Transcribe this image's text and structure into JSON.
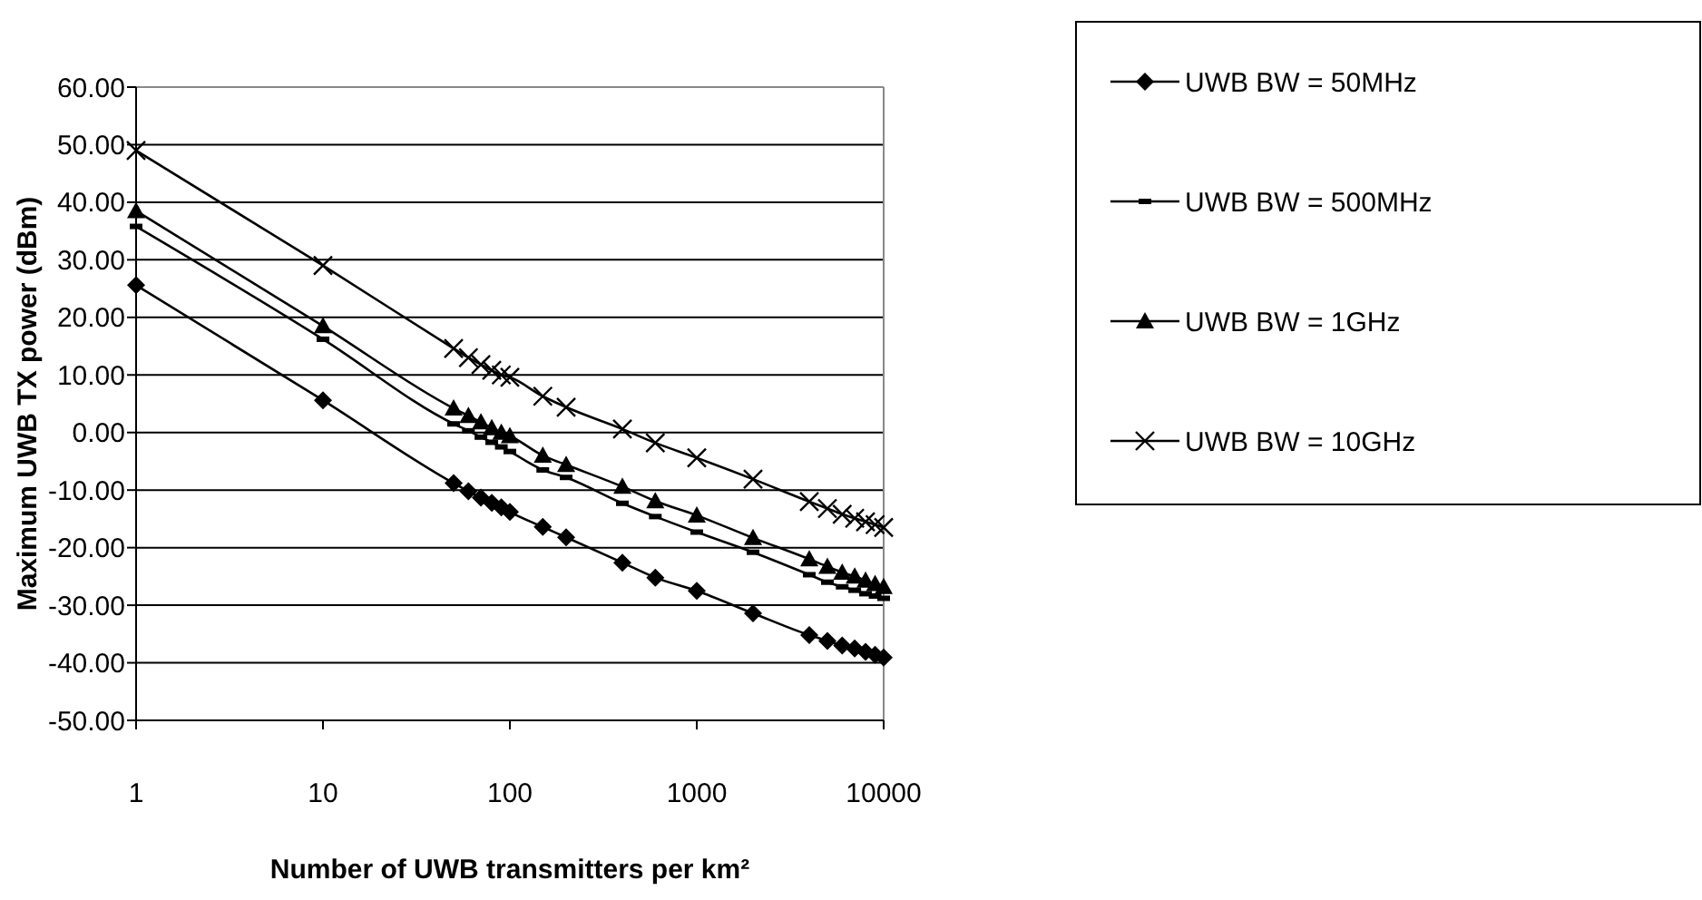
{
  "chart_data": {
    "type": "line",
    "xlabel": "Number of UWB transmitters per km²",
    "ylabel": "Maximum UWB TX power (dBm)",
    "x": [
      1,
      10,
      50,
      60,
      70,
      80,
      90,
      100,
      150,
      200,
      400,
      600,
      1000,
      2000,
      4000,
      5000,
      6000,
      7000,
      8000,
      9000,
      10000
    ],
    "series": [
      {
        "name": "UWB BW = 50MHz",
        "color": "#000000",
        "marker": "diamond",
        "values": [
          25.6,
          5.6,
          -8.8,
          -10.2,
          -11.3,
          -12.2,
          -13.0,
          -13.8,
          -16.4,
          -18.2,
          -22.6,
          -25.2,
          -27.5,
          -31.4,
          -35.2,
          -36.2,
          -37.0,
          -37.5,
          -38.1,
          -38.6,
          -39.1
        ]
      },
      {
        "name": "UWB BW = 500MHz",
        "color": "#000000",
        "marker": "square",
        "values": [
          35.8,
          16.2,
          1.5,
          0.3,
          -0.8,
          -1.7,
          -2.5,
          -3.3,
          -6.5,
          -7.8,
          -12.3,
          -14.6,
          -17.3,
          -20.8,
          -24.7,
          -26.0,
          -26.8,
          -27.4,
          -28.0,
          -28.4,
          -28.8
        ]
      },
      {
        "name": "UWB BW = 1GHz",
        "color": "#000000",
        "marker": "triangle",
        "values": [
          38.5,
          18.5,
          4.2,
          2.9,
          1.8,
          0.8,
          0.0,
          -0.6,
          -4.0,
          -5.6,
          -9.4,
          -11.9,
          -14.4,
          -18.3,
          -22.0,
          -23.3,
          -24.3,
          -25.0,
          -25.7,
          -26.3,
          -26.8
        ]
      },
      {
        "name": "UWB BW = 10GHz",
        "color": "#000000",
        "marker": "cross",
        "values": [
          49.0,
          29.0,
          14.6,
          13.0,
          11.8,
          10.8,
          10.0,
          9.6,
          6.3,
          4.4,
          0.6,
          -1.8,
          -4.4,
          -8.1,
          -12.0,
          -13.2,
          -14.2,
          -14.9,
          -15.5,
          -16.0,
          -16.5
        ]
      }
    ],
    "log": "x",
    "xlim": [
      1,
      10000
    ],
    "xticks": [
      1,
      10,
      100,
      1000,
      10000
    ],
    "ylim": [
      -50,
      60
    ],
    "yticks": [
      {
        "value": -50,
        "label": "-50.00"
      },
      {
        "value": -40,
        "label": "-40.00"
      },
      {
        "value": -30,
        "label": "-30.00"
      },
      {
        "value": -20,
        "label": "-20.00"
      },
      {
        "value": -10,
        "label": "-10.00"
      },
      {
        "value": 0,
        "label": "0.00"
      },
      {
        "value": 10,
        "label": "10.00"
      },
      {
        "value": 20,
        "label": "20.00"
      },
      {
        "value": 30,
        "label": "30.00"
      },
      {
        "value": 40,
        "label": "40.00"
      },
      {
        "value": 50,
        "label": "50.00"
      },
      {
        "value": 60,
        "label": "60.00"
      }
    ],
    "grid": "y",
    "legend": "right",
    "line_style": "solid"
  }
}
